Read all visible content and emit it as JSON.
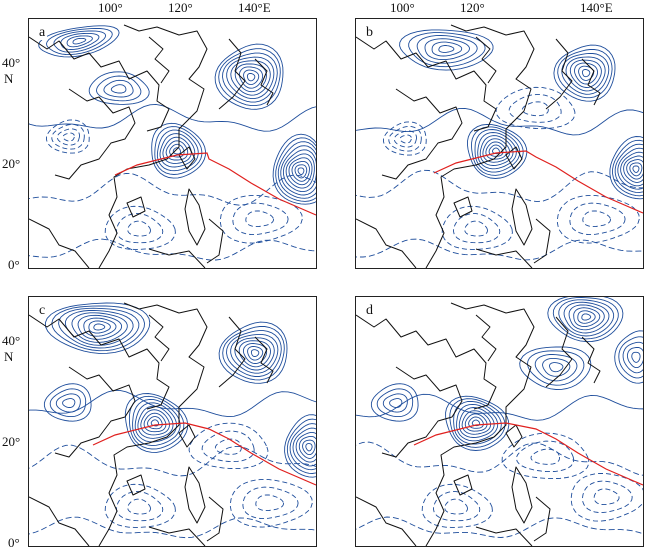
{
  "axes": {
    "lon_ticks": [
      "100°",
      "120°",
      "140°E"
    ],
    "lat_ticks": [
      "40°",
      "20°",
      "0°"
    ],
    "lat_unit": "N"
  },
  "panels": [
    {
      "letter": "a"
    },
    {
      "letter": "b"
    },
    {
      "letter": "c"
    },
    {
      "letter": "d"
    }
  ],
  "colors": {
    "contour": "#1f4e9c",
    "track": "#e0201e",
    "coast": "#111111",
    "frame": "#222222"
  }
}
